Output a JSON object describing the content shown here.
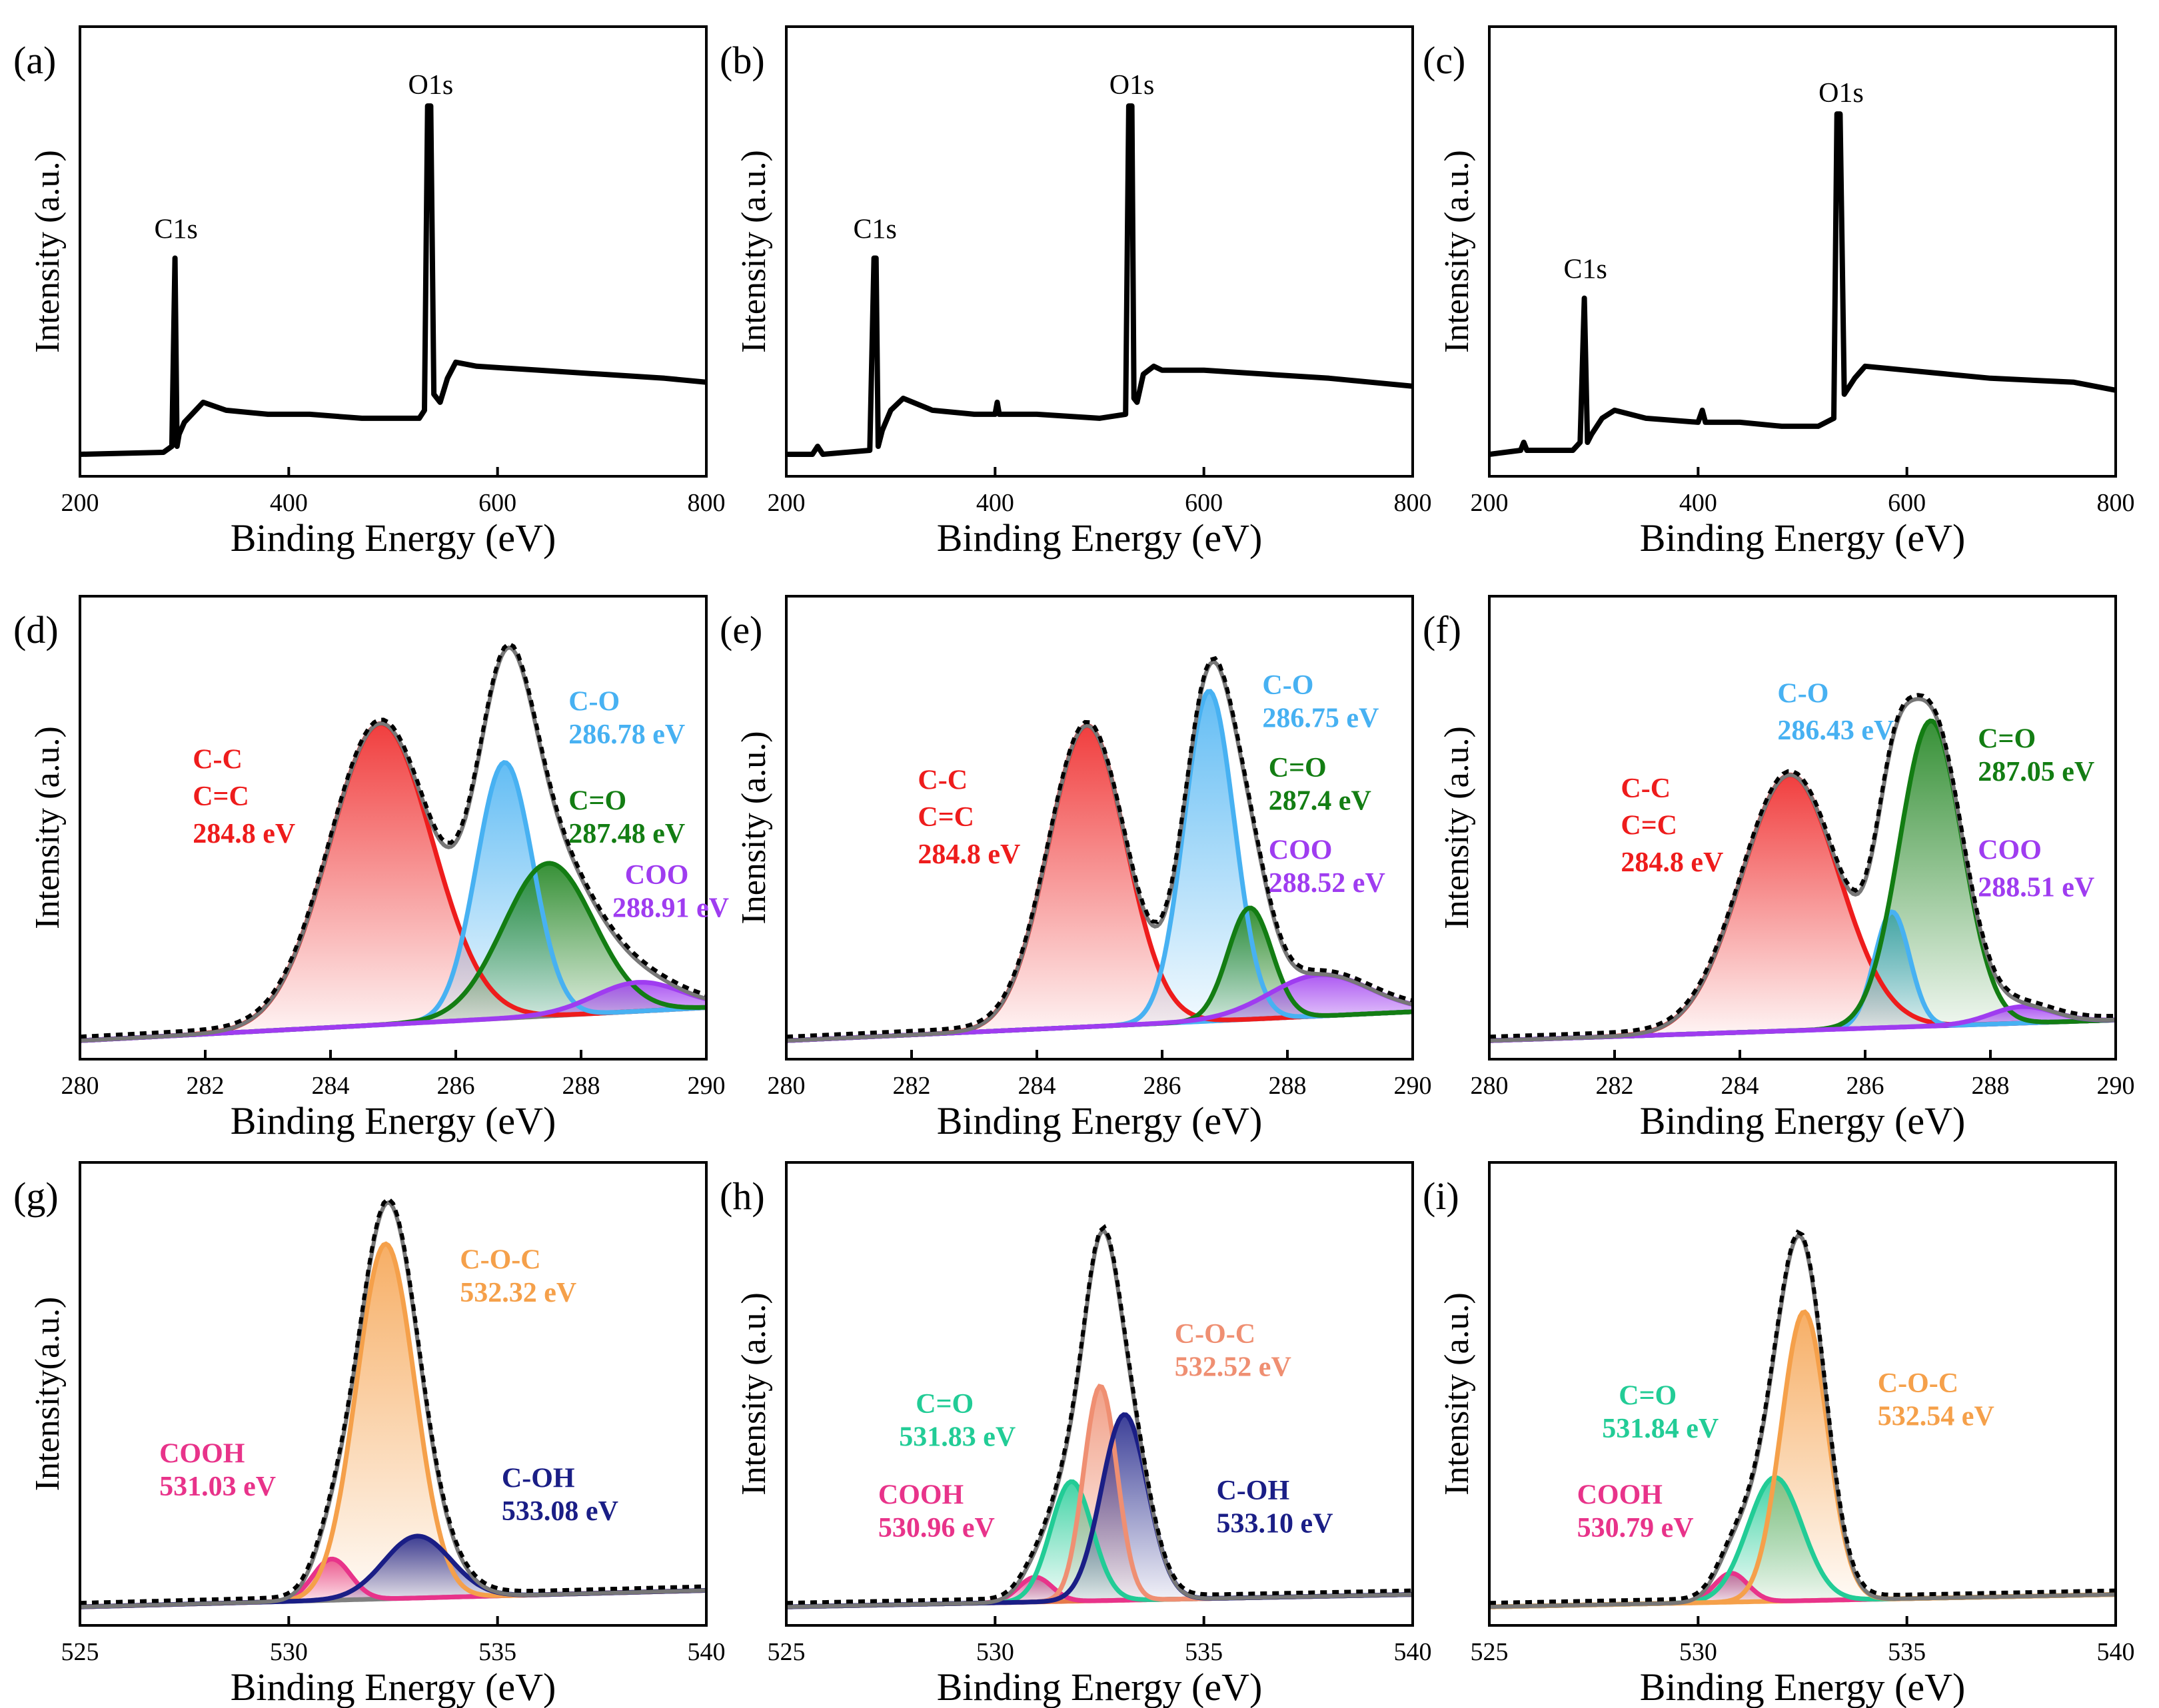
{
  "chart_data": [
    {
      "id": "a",
      "type": "line",
      "panel_label": "(a)",
      "kind": "survey",
      "xlabel": "Binding Energy (eV)",
      "ylabel": "Intensity (a.u.)",
      "xlim": [
        200,
        800
      ],
      "xticks": [
        200,
        400,
        600,
        800
      ],
      "ylim": [
        0,
        1
      ],
      "series": [
        {
          "name": "survey",
          "color": "#000000",
          "x": [
            200,
            280,
            288,
            291,
            293,
            295,
            300,
            318,
            340,
            380,
            420,
            470,
            505,
            525,
            530,
            533,
            536,
            539,
            545,
            552,
            560,
            580,
            640,
            700,
            760,
            800
          ],
          "y": [
            0.01,
            0.015,
            0.03,
            0.5,
            0.03,
            0.06,
            0.09,
            0.14,
            0.12,
            0.11,
            0.11,
            0.1,
            0.1,
            0.1,
            0.12,
            0.88,
            0.88,
            0.16,
            0.14,
            0.2,
            0.24,
            0.23,
            0.22,
            0.21,
            0.2,
            0.19
          ]
        }
      ],
      "annotations": [
        {
          "text": "C1s",
          "x": 292,
          "y": 0.55,
          "color": "#000000"
        },
        {
          "text": "O1s",
          "x": 536,
          "y": 0.91,
          "color": "#000000"
        }
      ]
    },
    {
      "id": "b",
      "type": "line",
      "panel_label": "(b)",
      "kind": "survey",
      "xlabel": "Binding Energy (eV)",
      "ylabel": "Intensity (a.u.)",
      "xlim": [
        200,
        800
      ],
      "xticks": [
        200,
        400,
        600,
        800
      ],
      "ylim": [
        0,
        1
      ],
      "series": [
        {
          "name": "survey",
          "color": "#000000",
          "x": [
            200,
            225,
            230,
            235,
            280,
            284,
            286,
            288,
            292,
            300,
            312,
            340,
            380,
            400,
            402,
            404,
            440,
            500,
            525,
            528,
            531,
            533,
            536,
            542,
            552,
            560,
            600,
            660,
            720,
            800
          ],
          "y": [
            0.01,
            0.01,
            0.03,
            0.01,
            0.02,
            0.5,
            0.5,
            0.03,
            0.07,
            0.12,
            0.15,
            0.12,
            0.11,
            0.11,
            0.14,
            0.11,
            0.11,
            0.1,
            0.11,
            0.88,
            0.88,
            0.15,
            0.14,
            0.21,
            0.23,
            0.22,
            0.22,
            0.21,
            0.2,
            0.18
          ]
        }
      ],
      "annotations": [
        {
          "text": "C1s",
          "x": 285,
          "y": 0.55,
          "color": "#000000"
        },
        {
          "text": "O1s",
          "x": 531,
          "y": 0.91,
          "color": "#000000"
        }
      ]
    },
    {
      "id": "c",
      "type": "line",
      "panel_label": "(c)",
      "kind": "survey",
      "xlabel": "Binding Energy (eV)",
      "ylabel": "Intensity (a.u.)",
      "xlim": [
        200,
        800
      ],
      "xticks": [
        200,
        400,
        600,
        800
      ],
      "ylim": [
        0,
        1
      ],
      "series": [
        {
          "name": "survey",
          "color": "#000000",
          "x": [
            200,
            230,
            233,
            236,
            280,
            287,
            291,
            294,
            298,
            308,
            320,
            350,
            400,
            404,
            407,
            440,
            480,
            515,
            530,
            533,
            536,
            540,
            550,
            560,
            600,
            680,
            760,
            800
          ],
          "y": [
            0.01,
            0.02,
            0.04,
            0.02,
            0.02,
            0.04,
            0.4,
            0.04,
            0.06,
            0.1,
            0.12,
            0.1,
            0.09,
            0.12,
            0.09,
            0.09,
            0.08,
            0.08,
            0.1,
            0.86,
            0.86,
            0.16,
            0.2,
            0.23,
            0.22,
            0.2,
            0.19,
            0.17
          ]
        }
      ],
      "annotations": [
        {
          "text": "C1s",
          "x": 292,
          "y": 0.45,
          "color": "#000000"
        },
        {
          "text": "O1s",
          "x": 537,
          "y": 0.89,
          "color": "#000000"
        }
      ]
    },
    {
      "id": "d",
      "type": "area",
      "panel_label": "(d)",
      "kind": "fit",
      "xlabel": "Binding Energy (eV)",
      "ylabel": "Intensity (a.u.)",
      "xlim": [
        280,
        290
      ],
      "xticks": [
        280,
        282,
        284,
        286,
        288,
        290
      ],
      "ylim": [
        0,
        1
      ],
      "background": {
        "x": [
          280,
          290
        ],
        "y": [
          0.0,
          0.08
        ]
      },
      "background_color": "#808080",
      "peaks": [
        {
          "name": "C-C C=C",
          "center": 284.8,
          "amplitude": 0.73,
          "sigma": 0.82,
          "color": "#ee1c1c"
        },
        {
          "name": "C-O",
          "center": 286.78,
          "amplitude": 0.62,
          "sigma": 0.45,
          "color": "#47b1f2"
        },
        {
          "name": "C=O",
          "center": 287.48,
          "amplitude": 0.37,
          "sigma": 0.72,
          "color": "#137d13"
        },
        {
          "name": "COO",
          "center": 288.91,
          "amplitude": 0.07,
          "sigma": 0.7,
          "color": "#9f3cf0"
        }
      ],
      "annotations": [
        {
          "text": "C-C",
          "x": 281.8,
          "y": 0.66,
          "color": "#ee1c1c"
        },
        {
          "text": "C=C",
          "x": 281.8,
          "y": 0.57,
          "color": "#ee1c1c"
        },
        {
          "text": "284.8 eV",
          "x": 281.8,
          "y": 0.48,
          "color": "#ee1c1c"
        },
        {
          "text": "C-O",
          "x": 287.8,
          "y": 0.8,
          "color": "#47b1f2"
        },
        {
          "text": "286.78 eV",
          "x": 287.8,
          "y": 0.72,
          "color": "#47b1f2"
        },
        {
          "text": "C=O",
          "x": 287.8,
          "y": 0.56,
          "color": "#137d13"
        },
        {
          "text": "287.48 eV",
          "x": 287.8,
          "y": 0.48,
          "color": "#137d13"
        },
        {
          "text": "COO",
          "x": 288.7,
          "y": 0.38,
          "color": "#9f3cf0"
        },
        {
          "text": "288.91 eV",
          "x": 288.5,
          "y": 0.3,
          "color": "#9f3cf0"
        }
      ]
    },
    {
      "id": "e",
      "type": "area",
      "panel_label": "(e)",
      "kind": "fit",
      "xlabel": "Binding Energy (eV)",
      "ylabel": "Inensity (a.u.)",
      "xlim": [
        280,
        290
      ],
      "xticks": [
        280,
        282,
        284,
        286,
        288,
        290
      ],
      "ylim": [
        0,
        1
      ],
      "background": {
        "x": [
          280,
          290
        ],
        "y": [
          0.0,
          0.07
        ]
      },
      "background_color": "#47b1f2",
      "peaks": [
        {
          "name": "C-C C=C",
          "center": 284.8,
          "amplitude": 0.73,
          "sigma": 0.62,
          "color": "#ee1c1c"
        },
        {
          "name": "C-O",
          "center": 286.75,
          "amplitude": 0.8,
          "sigma": 0.4,
          "color": "#47b1f2"
        },
        {
          "name": "C=O",
          "center": 287.4,
          "amplitude": 0.27,
          "sigma": 0.35,
          "color": "#137d13"
        },
        {
          "name": "COO",
          "center": 288.52,
          "amplitude": 0.1,
          "sigma": 0.8,
          "color": "#9f3cf0"
        }
      ],
      "annotations": [
        {
          "text": "C-C",
          "x": 282.1,
          "y": 0.61,
          "color": "#ee1c1c"
        },
        {
          "text": "C=C",
          "x": 282.1,
          "y": 0.52,
          "color": "#ee1c1c"
        },
        {
          "text": "284.8 eV",
          "x": 282.1,
          "y": 0.43,
          "color": "#ee1c1c"
        },
        {
          "text": "C-O",
          "x": 287.6,
          "y": 0.84,
          "color": "#47b1f2"
        },
        {
          "text": "286.75 eV",
          "x": 287.6,
          "y": 0.76,
          "color": "#47b1f2"
        },
        {
          "text": "C=O",
          "x": 287.7,
          "y": 0.64,
          "color": "#137d13"
        },
        {
          "text": "287.4 eV",
          "x": 287.7,
          "y": 0.56,
          "color": "#137d13"
        },
        {
          "text": "COO",
          "x": 287.7,
          "y": 0.44,
          "color": "#9f3cf0"
        },
        {
          "text": "288.52 eV",
          "x": 287.7,
          "y": 0.36,
          "color": "#9f3cf0"
        }
      ]
    },
    {
      "id": "f",
      "type": "area",
      "panel_label": "(f)",
      "kind": "fit",
      "xlabel": "Binding Energy (eV)",
      "ylabel": "Intensity (a.u.)",
      "xlim": [
        280,
        290
      ],
      "xticks": [
        280,
        282,
        284,
        286,
        288,
        290
      ],
      "ylim": [
        0,
        1
      ],
      "background": {
        "x": [
          280,
          290
        ],
        "y": [
          0.0,
          0.05
        ]
      },
      "background_color": "#7a2fd8",
      "peaks": [
        {
          "name": "C-C C=C",
          "center": 284.8,
          "amplitude": 0.62,
          "sigma": 0.78,
          "color": "#ee1c1c"
        },
        {
          "name": "C-O",
          "center": 286.43,
          "amplitude": 0.28,
          "sigma": 0.28,
          "color": "#47b1f2"
        },
        {
          "name": "C=O",
          "center": 287.05,
          "amplitude": 0.74,
          "sigma": 0.5,
          "color": "#137d13"
        },
        {
          "name": "COO",
          "center": 288.51,
          "amplitude": 0.04,
          "sigma": 0.5,
          "color": "#9f3cf0"
        }
      ],
      "annotations": [
        {
          "text": "C-C",
          "x": 282.1,
          "y": 0.59,
          "color": "#ee1c1c"
        },
        {
          "text": "C=C",
          "x": 282.1,
          "y": 0.5,
          "color": "#ee1c1c"
        },
        {
          "text": "284.8 eV",
          "x": 282.1,
          "y": 0.41,
          "color": "#ee1c1c"
        },
        {
          "text": "C-O",
          "x": 284.6,
          "y": 0.82,
          "color": "#47b1f2"
        },
        {
          "text": "286.43 eV",
          "x": 284.6,
          "y": 0.73,
          "color": "#47b1f2"
        },
        {
          "text": "C=O",
          "x": 287.8,
          "y": 0.71,
          "color": "#137d13"
        },
        {
          "text": "287.05 eV",
          "x": 287.8,
          "y": 0.63,
          "color": "#137d13"
        },
        {
          "text": "COO",
          "x": 287.8,
          "y": 0.44,
          "color": "#9f3cf0"
        },
        {
          "text": "288.51 eV",
          "x": 287.8,
          "y": 0.35,
          "color": "#9f3cf0"
        }
      ]
    },
    {
      "id": "g",
      "type": "area",
      "panel_label": "(g)",
      "kind": "fit",
      "xlabel": "Binding Energy (eV)",
      "ylabel": "Intensity(a.u.)",
      "xlim": [
        525,
        540
      ],
      "xticks": [
        525,
        530,
        535,
        540
      ],
      "ylim": [
        0,
        1
      ],
      "background": {
        "x": [
          525,
          540
        ],
        "y": [
          0.0,
          0.04
        ]
      },
      "background_color": "#808080",
      "peaks": [
        {
          "name": "COOH",
          "center": 531.03,
          "amplitude": 0.1,
          "sigma": 0.45,
          "color": "#e8338a"
        },
        {
          "name": "C-O-C",
          "center": 532.32,
          "amplitude": 0.86,
          "sigma": 0.7,
          "color": "#f5a04a"
        },
        {
          "name": "C-OH",
          "center": 533.08,
          "amplitude": 0.15,
          "sigma": 0.8,
          "color": "#1a1e86"
        }
      ],
      "annotations": [
        {
          "text": "C-O-C",
          "x": 534.1,
          "y": 0.82,
          "color": "#f5a04a"
        },
        {
          "text": "532.32 eV",
          "x": 534.1,
          "y": 0.74,
          "color": "#f5a04a"
        },
        {
          "text": "COOH",
          "x": 526.9,
          "y": 0.35,
          "color": "#e8338a"
        },
        {
          "text": "531.03 eV",
          "x": 526.9,
          "y": 0.27,
          "color": "#e8338a"
        },
        {
          "text": "C-OH",
          "x": 535.1,
          "y": 0.29,
          "color": "#1a1e86"
        },
        {
          "text": "533.08 eV",
          "x": 535.1,
          "y": 0.21,
          "color": "#1a1e86"
        }
      ]
    },
    {
      "id": "h",
      "type": "area",
      "panel_label": "(h)",
      "kind": "fit",
      "xlabel": "Binding Energy (eV)",
      "ylabel": "Intensity (a.u.)",
      "xlim": [
        525,
        540
      ],
      "xticks": [
        525,
        530,
        535,
        540
      ],
      "ylim": [
        0,
        1
      ],
      "background": {
        "x": [
          525,
          540
        ],
        "y": [
          0.0,
          0.03
        ]
      },
      "background_color": "#e67a4a",
      "peaks": [
        {
          "name": "COOH",
          "center": 530.96,
          "amplitude": 0.06,
          "sigma": 0.4,
          "color": "#e8338a"
        },
        {
          "name": "C=O",
          "center": 531.83,
          "amplitude": 0.29,
          "sigma": 0.5,
          "color": "#22cc96"
        },
        {
          "name": "C-O-C",
          "center": 532.52,
          "amplitude": 0.52,
          "sigma": 0.4,
          "color": "#ef8f72"
        },
        {
          "name": "C-OH",
          "center": 533.1,
          "amplitude": 0.45,
          "sigma": 0.55,
          "color": "#1a1e86"
        }
      ],
      "annotations": [
        {
          "text": "C-O-C",
          "x": 534.3,
          "y": 0.64,
          "color": "#ef8f72"
        },
        {
          "text": "532.52 eV",
          "x": 534.3,
          "y": 0.56,
          "color": "#ef8f72"
        },
        {
          "text": "C=O",
          "x": 528.1,
          "y": 0.47,
          "color": "#22cc96"
        },
        {
          "text": "531.83 eV",
          "x": 527.7,
          "y": 0.39,
          "color": "#22cc96"
        },
        {
          "text": "COOH",
          "x": 527.2,
          "y": 0.25,
          "color": "#e8338a"
        },
        {
          "text": "530.96 eV",
          "x": 527.2,
          "y": 0.17,
          "color": "#e8338a"
        },
        {
          "text": "C-OH",
          "x": 535.3,
          "y": 0.26,
          "color": "#1a1e86"
        },
        {
          "text": "533.10 eV",
          "x": 535.3,
          "y": 0.18,
          "color": "#1a1e86"
        }
      ]
    },
    {
      "id": "i",
      "type": "area",
      "panel_label": "(i)",
      "kind": "fit",
      "xlabel": "Binding Energy (eV)",
      "ylabel": "Intensity (a.u.)",
      "xlim": [
        525,
        540
      ],
      "xticks": [
        525,
        530,
        535,
        540
      ],
      "ylim": [
        0,
        1
      ],
      "background": {
        "x": [
          525,
          540
        ],
        "y": [
          0.0,
          0.03
        ]
      },
      "background_color": "#f5a04a",
      "peaks": [
        {
          "name": "COOH",
          "center": 530.79,
          "amplitude": 0.07,
          "sigma": 0.4,
          "color": "#e8338a"
        },
        {
          "name": "C=O",
          "center": 531.84,
          "amplitude": 0.3,
          "sigma": 0.65,
          "color": "#22cc96"
        },
        {
          "name": "C-O-C",
          "center": 532.54,
          "amplitude": 0.7,
          "sigma": 0.55,
          "color": "#f5a04a"
        }
      ],
      "annotations": [
        {
          "text": "C=O",
          "x": 528.1,
          "y": 0.49,
          "color": "#22cc96"
        },
        {
          "text": "531.84 eV",
          "x": 527.7,
          "y": 0.41,
          "color": "#22cc96"
        },
        {
          "text": "C-O-C",
          "x": 534.3,
          "y": 0.52,
          "color": "#f5a04a"
        },
        {
          "text": "532.54 eV",
          "x": 534.3,
          "y": 0.44,
          "color": "#f5a04a"
        },
        {
          "text": "COOH",
          "x": 527.1,
          "y": 0.25,
          "color": "#e8338a"
        },
        {
          "text": "530.79 eV",
          "x": 527.1,
          "y": 0.17,
          "color": "#e8338a"
        }
      ]
    }
  ]
}
